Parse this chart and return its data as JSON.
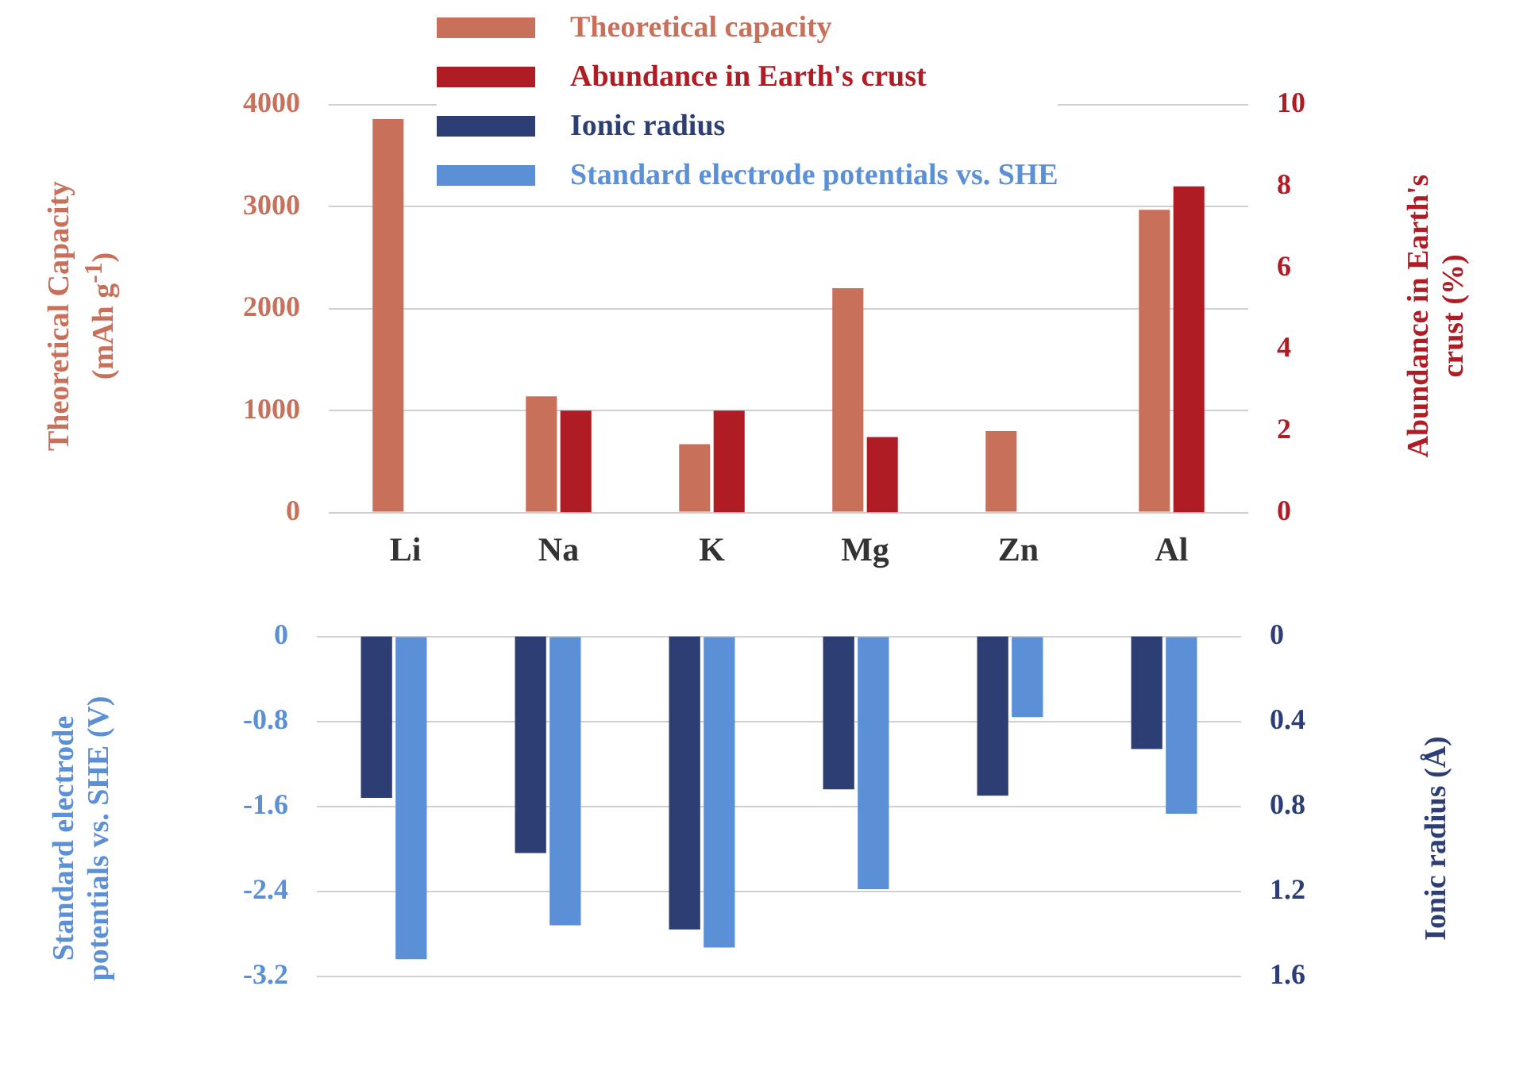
{
  "chart_data": [
    {
      "type": "bar",
      "categories": [
        "Li",
        "Na",
        "K",
        "Mg",
        "Zn",
        "Al"
      ],
      "ylabel": "Theoretical Capacity (mAh g$^{-1}$)",
      "y2label": "Abundance in Earth's crust (%)",
      "ylim": [
        0,
        4000
      ],
      "yticks": [
        0,
        1000,
        2000,
        3000,
        4000
      ],
      "y2lim": [
        0,
        10
      ],
      "y2ticks": [
        0,
        2,
        4,
        6,
        8,
        10
      ],
      "grid": "y",
      "legend": "top left",
      "series": [
        {
          "name": "Theoretical capacity",
          "color": "#c9705a",
          "values": [
            3860,
            1140,
            670,
            2200,
            800,
            2970
          ]
        },
        {
          "name": "Abundance in Earth's crust",
          "color": "#b01c24",
          "axis": "y2",
          "values": [
            null,
            2.5,
            2.5,
            1.85,
            null,
            8.0
          ]
        }
      ]
    },
    {
      "type": "bar",
      "categories": [
        null,
        null,
        null,
        null,
        null,
        null
      ],
      "ylabel": "Standard electrode potentials vs. SHE (V)",
      "y2label": "Ionic radius (Å)",
      "ylim": [
        -3.2,
        0
      ],
      "yticks": [
        -3.2,
        -2.4,
        -1.6,
        -0.8,
        0
      ],
      "y2lim": [
        1.6,
        0
      ],
      "y2ticks": [
        0,
        0.4,
        0.8,
        1.2,
        1.6
      ],
      "grid": "y",
      "legend": "top left",
      "series": [
        {
          "name": "Ionic radius",
          "color": "#2c3e73",
          "axis": "y2",
          "values": [
            0.76,
            1.02,
            1.38,
            0.72,
            0.75,
            0.53
          ]
        },
        {
          "name": "Standard electrode potentials vs. SHE",
          "color": "#5b8fd6",
          "values": [
            -3.04,
            -2.72,
            -2.93,
            -2.38,
            -0.76,
            -1.67
          ]
        }
      ]
    }
  ]
}
